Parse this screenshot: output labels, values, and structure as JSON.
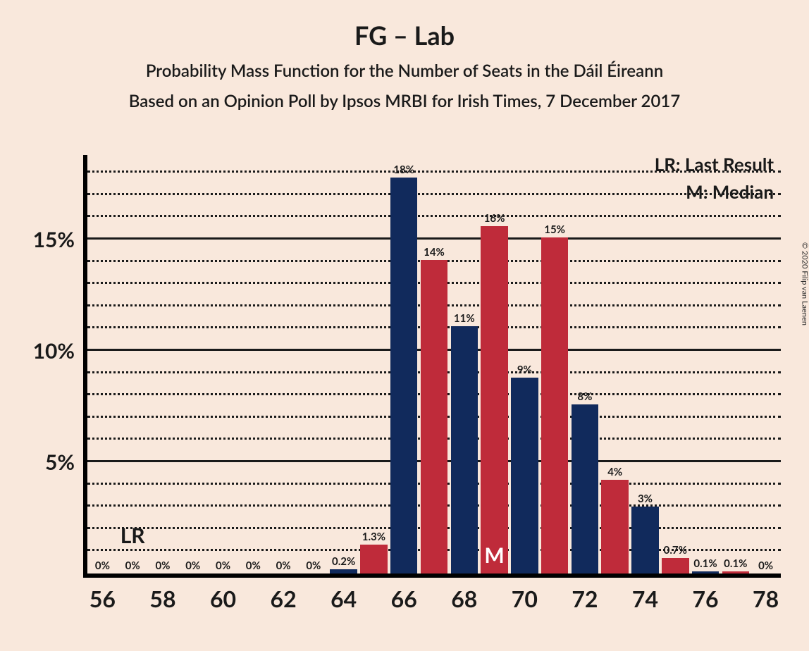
{
  "copyright": "© 2020 Filip van Laenen",
  "title": "FG – Lab",
  "subtitle1": "Probability Mass Function for the Number of Seats in the Dáil Éireann",
  "subtitle2": "Based on an Opinion Poll by Ipsos MRBI for Irish Times, 7 December 2017",
  "legend": {
    "lr": "LR: Last Result",
    "m": "M: Median"
  },
  "chart": {
    "type": "bar",
    "background_color": "#f9e8dc",
    "axis_color": "#000000",
    "grid_color": "#1a1a1a",
    "colors": {
      "blue": "#112a5c",
      "red": "#bf2b3a"
    },
    "y_max_pct": 18.8,
    "y_major_ticks": [
      5,
      10,
      15
    ],
    "y_minor_step": 1,
    "x_ticks": [
      56,
      58,
      60,
      62,
      64,
      66,
      68,
      70,
      72,
      74,
      76,
      78
    ],
    "x_min": 55.5,
    "x_max": 78.5,
    "bar_half_width_units": 0.45,
    "lr_seat": 57,
    "lr_text": "LR",
    "median_seat": 69,
    "median_text": "M",
    "bars": [
      {
        "seat": 56,
        "label": "0%",
        "value": 0,
        "color": "blue"
      },
      {
        "seat": 57,
        "label": "0%",
        "value": 0,
        "color": "red"
      },
      {
        "seat": 58,
        "label": "0%",
        "value": 0,
        "color": "blue"
      },
      {
        "seat": 59,
        "label": "0%",
        "value": 0,
        "color": "red"
      },
      {
        "seat": 60,
        "label": "0%",
        "value": 0,
        "color": "blue"
      },
      {
        "seat": 61,
        "label": "0%",
        "value": 0,
        "color": "red"
      },
      {
        "seat": 62,
        "label": "0%",
        "value": 0,
        "color": "blue"
      },
      {
        "seat": 63,
        "label": "0%",
        "value": 0,
        "color": "red"
      },
      {
        "seat": 64,
        "label": "0.2%",
        "value": 0.2,
        "color": "blue"
      },
      {
        "seat": 65,
        "label": "1.3%",
        "value": 1.3,
        "color": "red"
      },
      {
        "seat": 66,
        "label": "18%",
        "value": 17.8,
        "color": "blue"
      },
      {
        "seat": 67,
        "label": "14%",
        "value": 14.1,
        "color": "red"
      },
      {
        "seat": 68,
        "label": "11%",
        "value": 11.1,
        "color": "blue"
      },
      {
        "seat": 69,
        "label": "16%",
        "value": 15.6,
        "color": "red"
      },
      {
        "seat": 70,
        "label": "9%",
        "value": 8.8,
        "color": "blue"
      },
      {
        "seat": 71,
        "label": "15%",
        "value": 15.1,
        "color": "red"
      },
      {
        "seat": 72,
        "label": "8%",
        "value": 7.6,
        "color": "blue"
      },
      {
        "seat": 73,
        "label": "4%",
        "value": 4.2,
        "color": "red"
      },
      {
        "seat": 74,
        "label": "3%",
        "value": 3.0,
        "color": "blue"
      },
      {
        "seat": 75,
        "label": "0.7%",
        "value": 0.7,
        "color": "red"
      },
      {
        "seat": 76,
        "label": "0.1%",
        "value": 0.1,
        "color": "blue"
      },
      {
        "seat": 77,
        "label": "0.1%",
        "value": 0.1,
        "color": "red"
      },
      {
        "seat": 78,
        "label": "0%",
        "value": 0,
        "color": "blue"
      }
    ]
  }
}
